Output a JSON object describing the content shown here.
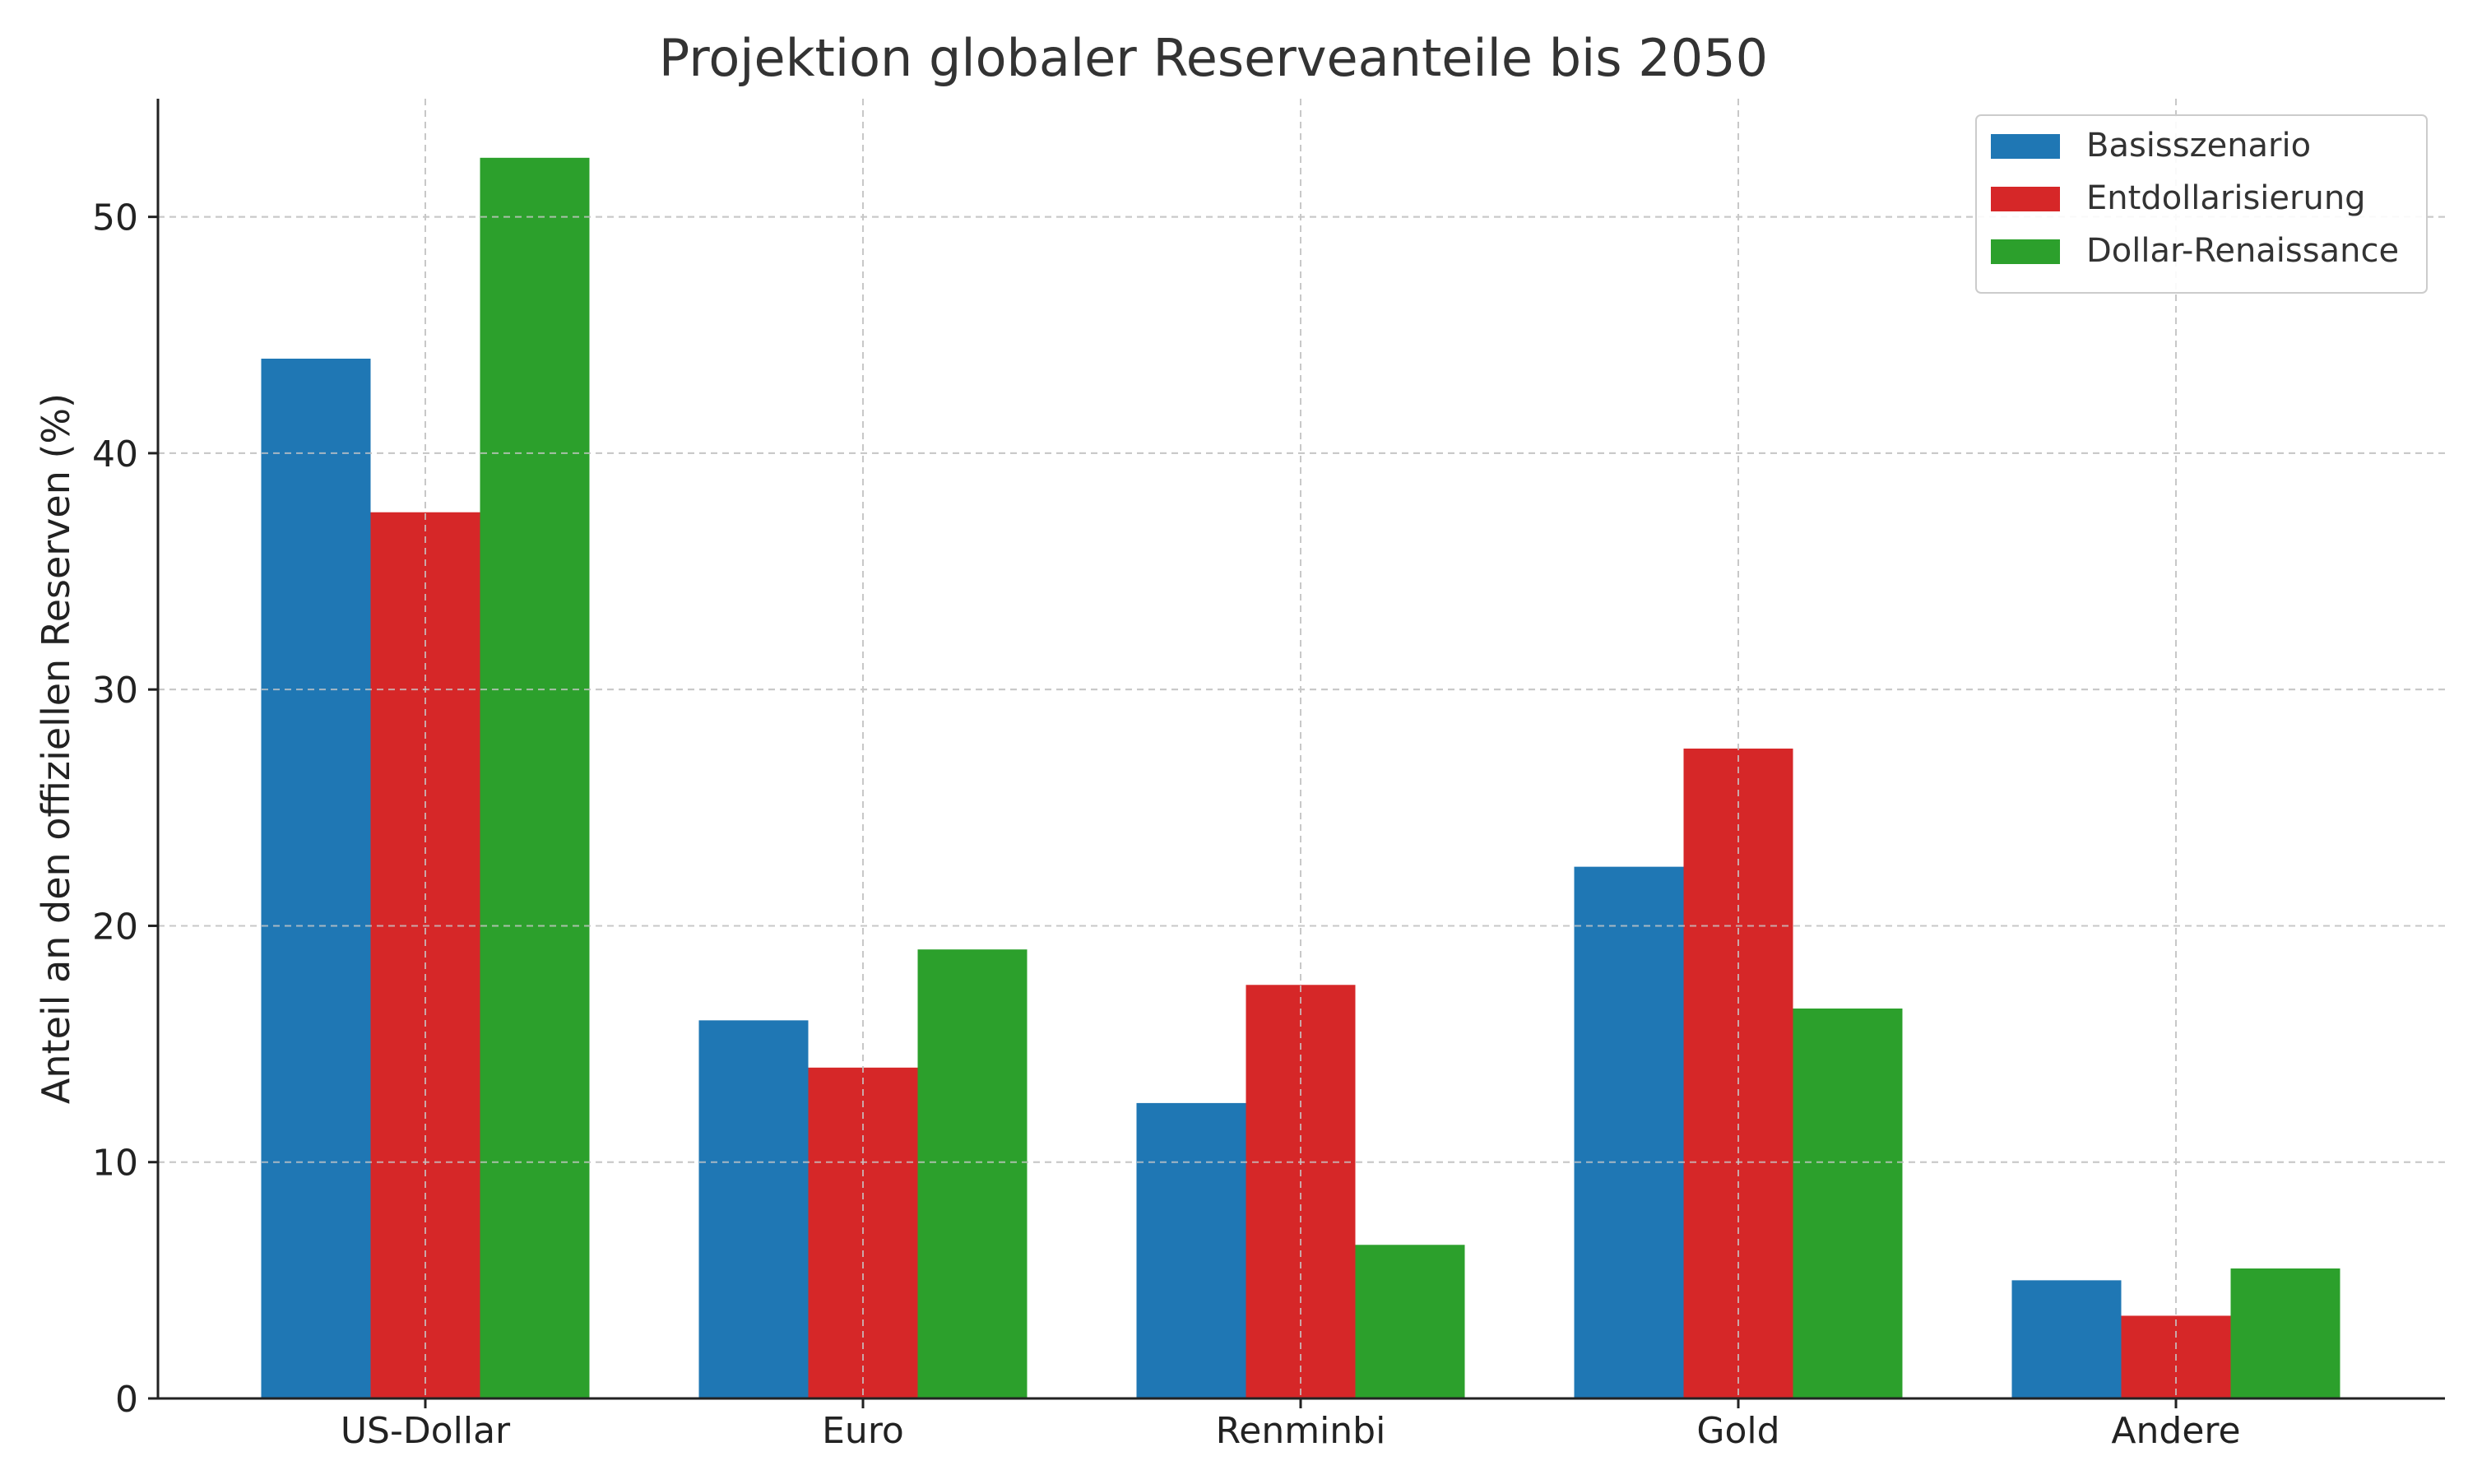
{
  "chart_data": {
    "type": "bar",
    "title": "Projektion globaler Reserveanteile bis 2050",
    "xlabel": "",
    "ylabel": "Anteil an den offiziellen Reserven (%)",
    "categories": [
      "US-Dollar",
      "Euro",
      "Renminbi",
      "Gold",
      "Andere"
    ],
    "series": [
      {
        "name": "Basisszenario",
        "color": "#1f77b4",
        "values": [
          44.0,
          16.0,
          12.5,
          22.5,
          5.0
        ]
      },
      {
        "name": "Entdollarisierung",
        "color": "#d62728",
        "values": [
          37.5,
          14.0,
          17.5,
          27.5,
          3.5
        ]
      },
      {
        "name": "Dollar-Renaissance",
        "color": "#2ca02c",
        "values": [
          52.5,
          19.0,
          6.5,
          16.5,
          5.5
        ]
      }
    ],
    "ylim": [
      0,
      55
    ],
    "yticks": [
      0,
      10,
      20,
      30,
      40,
      50
    ],
    "grid": true,
    "legend_position": "top-right"
  }
}
